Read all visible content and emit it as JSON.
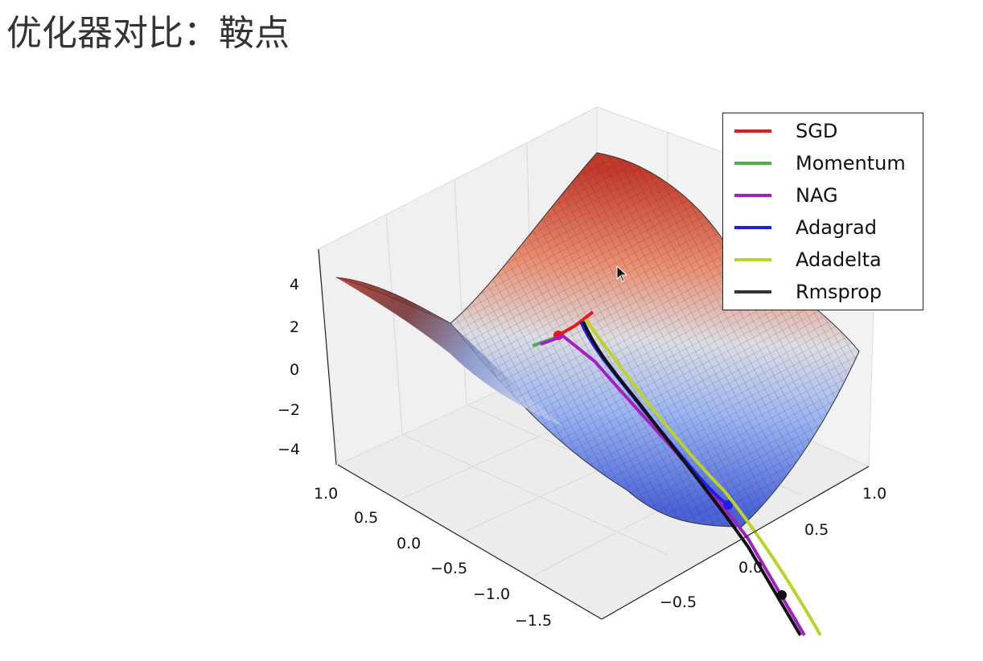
{
  "page": {
    "title": "优化器对比：鞍点"
  },
  "chart_data": {
    "type": "surface",
    "surface": "saddle",
    "colormap": {
      "low": "#3a4cc0",
      "mid": "#dddddd",
      "high": "#b40426"
    },
    "grid": true,
    "z_ticks": [
      "4",
      "2",
      "0",
      "−2",
      "−4"
    ],
    "x_ticks": [
      "1.0",
      "0.5",
      "0.0",
      "−0.5",
      "−1.0",
      "−1.5"
    ],
    "y_ticks": [
      "1.0",
      "0.5",
      "0.0",
      "−0.5"
    ],
    "legend_position": "upper right",
    "series": [
      {
        "name": "SGD",
        "color": "#e41a1c"
      },
      {
        "name": "Momentum",
        "color": "#4daf4a"
      },
      {
        "name": "NAG",
        "color": "#a020c0"
      },
      {
        "name": "Adagrad",
        "color": "#1f1fdf"
      },
      {
        "name": "Adadelta",
        "color": "#bcd12a"
      },
      {
        "name": "Rmsprop",
        "color": "#333333"
      }
    ]
  }
}
